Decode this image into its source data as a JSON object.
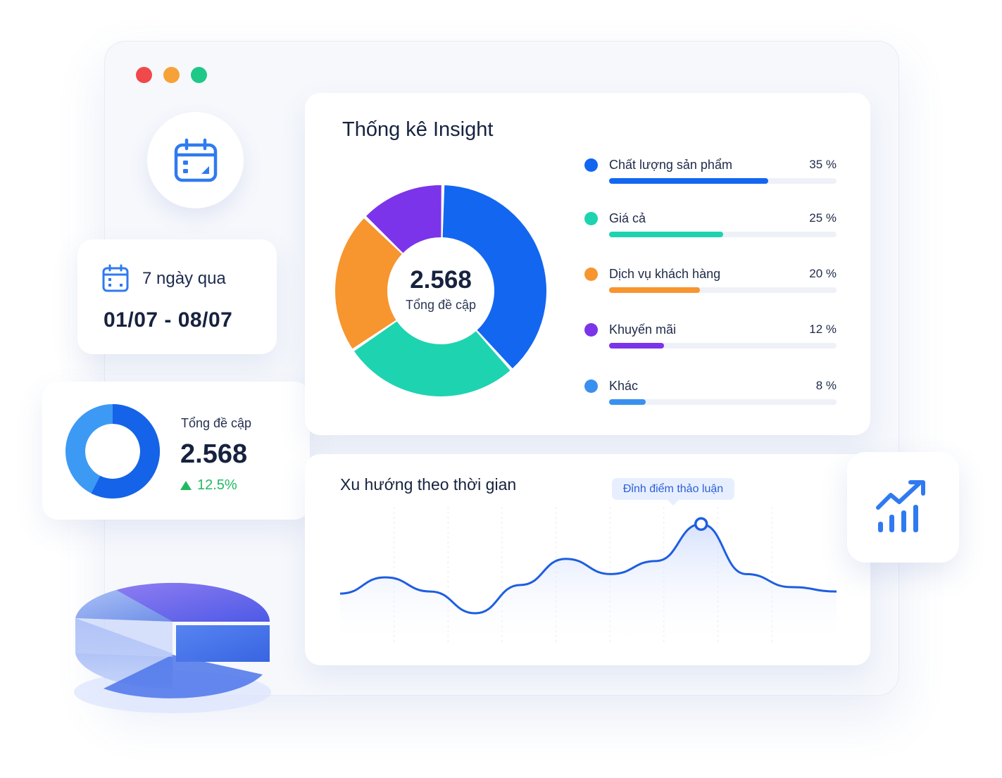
{
  "window": {
    "controls": [
      "close",
      "minimize",
      "maximize"
    ]
  },
  "date_filter": {
    "range_label": "7 ngày qua",
    "dates": "01/07 - 08/07",
    "icon": "calendar-icon"
  },
  "total_card": {
    "label": "Tổng đề cập",
    "value": "2.568",
    "growth": "12.5%",
    "growth_color": "#22b863"
  },
  "insight": {
    "title": "Thống kê Insight",
    "center_value": "2.568",
    "center_label": "Tổng đề cập",
    "categories": [
      {
        "name": "Chất lượng sản phẩm",
        "pct_label": "35 %",
        "value": 35,
        "color": "#1366f0"
      },
      {
        "name": "Giá cả",
        "pct_label": "25 %",
        "value": 25,
        "color": "#1ed3b0"
      },
      {
        "name": "Dịch vụ khách hàng",
        "pct_label": "20 %",
        "value": 20,
        "color": "#f7952f"
      },
      {
        "name": "Khuyến mãi",
        "pct_label": "12 %",
        "value": 12,
        "color": "#7b34ea"
      },
      {
        "name": "Khác",
        "pct_label": "8 %",
        "value": 8,
        "color": "#3a90ef"
      }
    ]
  },
  "trend": {
    "title": "Xu hướng theo thời gian",
    "peak_label": "Đỉnh điểm thảo luận",
    "line_color": "#1e5ee0",
    "values": [
      40,
      55,
      42,
      22,
      48,
      72,
      58,
      70,
      104,
      58,
      46,
      42
    ]
  },
  "colors": {
    "accent": "#1e5ee0",
    "close": "#f0484b",
    "minimize": "#f7a238",
    "maximize": "#1fc886"
  }
}
